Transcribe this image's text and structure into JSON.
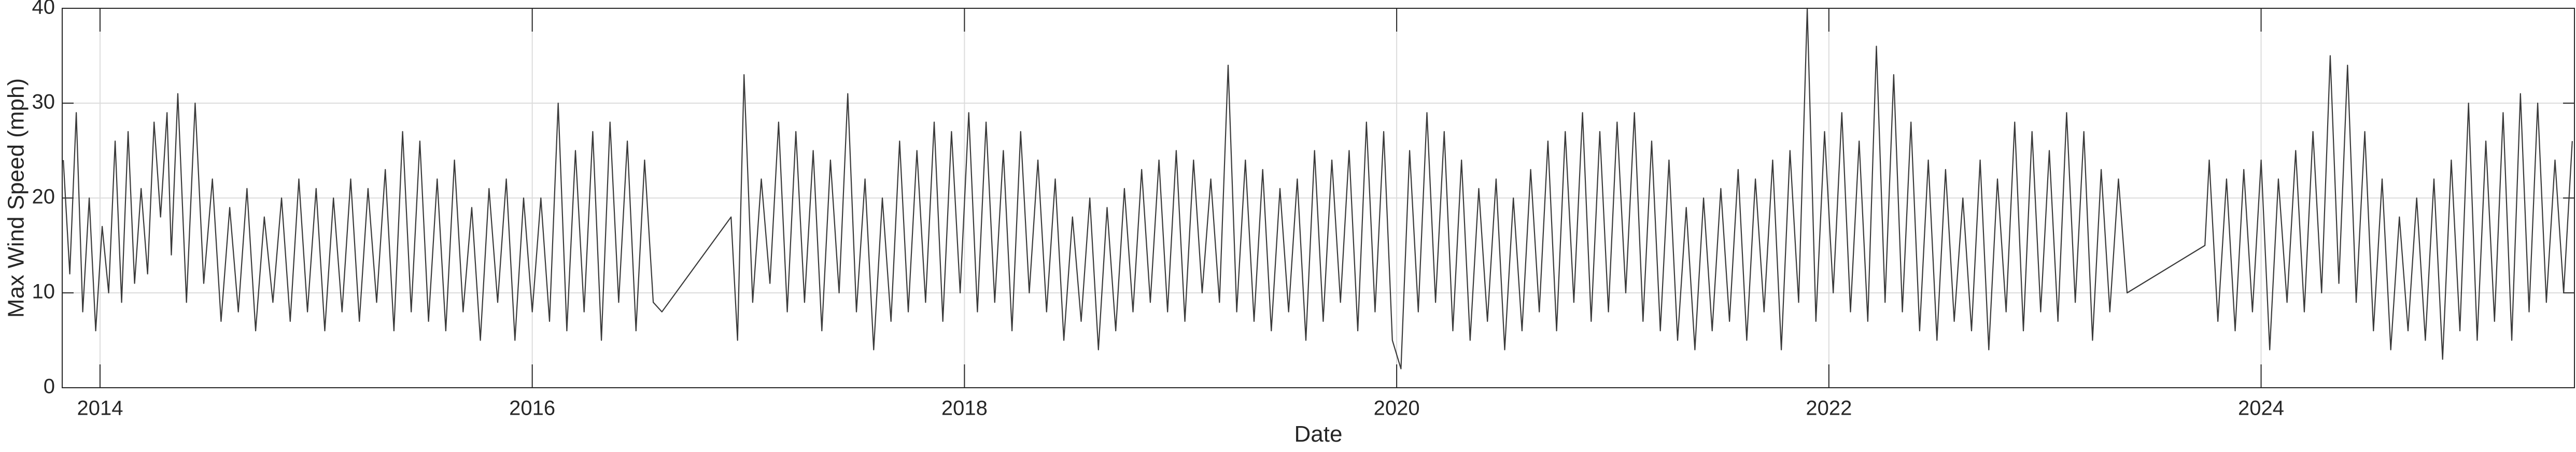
{
  "chart_data": {
    "type": "line",
    "x_label": "Date",
    "y_label": "Max Wind Speed (mph)",
    "xlim": [
      2013.825,
      2025.45
    ],
    "ylim": [
      0,
      40
    ],
    "xticks": [
      2014,
      2016,
      2018,
      2020,
      2022,
      2024
    ],
    "yticks": [
      0,
      10,
      20,
      30,
      40
    ],
    "grid": true,
    "series": [
      {
        "name": "Max Wind Speed",
        "color": "#3a3a3a",
        "x": [
          2013.83,
          2013.86,
          2013.89,
          2013.92,
          2013.95,
          2013.98,
          2014.01,
          2014.04,
          2014.07,
          2014.1,
          2014.13,
          2014.16,
          2014.19,
          2014.22,
          2014.25,
          2014.28,
          2014.31,
          2014.33,
          2014.36,
          2014.4,
          2014.44,
          2014.48,
          2014.52,
          2014.56,
          2014.6,
          2014.64,
          2014.68,
          2014.72,
          2014.76,
          2014.8,
          2014.84,
          2014.88,
          2014.92,
          2014.96,
          2015.0,
          2015.04,
          2015.08,
          2015.12,
          2015.16,
          2015.2,
          2015.24,
          2015.28,
          2015.32,
          2015.36,
          2015.4,
          2015.44,
          2015.48,
          2015.52,
          2015.56,
          2015.6,
          2015.64,
          2015.68,
          2015.72,
          2015.76,
          2015.8,
          2015.84,
          2015.88,
          2015.92,
          2015.96,
          2016.0,
          2016.04,
          2016.08,
          2016.12,
          2016.16,
          2016.2,
          2016.24,
          2016.28,
          2016.32,
          2016.36,
          2016.4,
          2016.44,
          2016.48,
          2016.52,
          2016.56,
          2016.6,
          2016.92,
          2016.95,
          2016.98,
          2017.02,
          2017.06,
          2017.1,
          2017.14,
          2017.18,
          2017.22,
          2017.26,
          2017.3,
          2017.34,
          2017.38,
          2017.42,
          2017.46,
          2017.5,
          2017.54,
          2017.58,
          2017.62,
          2017.66,
          2017.7,
          2017.74,
          2017.78,
          2017.82,
          2017.86,
          2017.9,
          2017.94,
          2017.98,
          2018.02,
          2018.06,
          2018.1,
          2018.14,
          2018.18,
          2018.22,
          2018.26,
          2018.3,
          2018.34,
          2018.38,
          2018.42,
          2018.46,
          2018.5,
          2018.54,
          2018.58,
          2018.62,
          2018.66,
          2018.7,
          2018.74,
          2018.78,
          2018.82,
          2018.86,
          2018.9,
          2018.94,
          2018.98,
          2019.02,
          2019.06,
          2019.1,
          2019.14,
          2019.18,
          2019.22,
          2019.26,
          2019.3,
          2019.34,
          2019.38,
          2019.42,
          2019.46,
          2019.5,
          2019.54,
          2019.58,
          2019.62,
          2019.66,
          2019.7,
          2019.74,
          2019.78,
          2019.82,
          2019.86,
          2019.9,
          2019.94,
          2019.98,
          2020.02,
          2020.06,
          2020.1,
          2020.14,
          2020.18,
          2020.22,
          2020.26,
          2020.3,
          2020.34,
          2020.38,
          2020.42,
          2020.46,
          2020.5,
          2020.54,
          2020.58,
          2020.62,
          2020.66,
          2020.7,
          2020.74,
          2020.78,
          2020.82,
          2020.86,
          2020.9,
          2020.94,
          2020.98,
          2021.02,
          2021.06,
          2021.1,
          2021.14,
          2021.18,
          2021.22,
          2021.26,
          2021.3,
          2021.34,
          2021.38,
          2021.42,
          2021.46,
          2021.5,
          2021.54,
          2021.58,
          2021.62,
          2021.66,
          2021.7,
          2021.74,
          2021.78,
          2021.82,
          2021.86,
          2021.9,
          2021.94,
          2021.98,
          2022.02,
          2022.06,
          2022.1,
          2022.14,
          2022.18,
          2022.22,
          2022.26,
          2022.3,
          2022.34,
          2022.38,
          2022.42,
          2022.46,
          2022.5,
          2022.54,
          2022.58,
          2022.62,
          2022.66,
          2022.7,
          2022.74,
          2022.78,
          2022.82,
          2022.86,
          2022.9,
          2022.94,
          2022.98,
          2023.02,
          2023.06,
          2023.1,
          2023.14,
          2023.18,
          2023.22,
          2023.26,
          2023.3,
          2023.34,
          2023.38,
          2023.74,
          2023.76,
          2023.8,
          2023.84,
          2023.88,
          2023.92,
          2023.96,
          2024.0,
          2024.04,
          2024.08,
          2024.12,
          2024.16,
          2024.2,
          2024.24,
          2024.28,
          2024.32,
          2024.36,
          2024.4,
          2024.44,
          2024.48,
          2024.52,
          2024.56,
          2024.6,
          2024.64,
          2024.68,
          2024.72,
          2024.76,
          2024.8,
          2024.84,
          2024.88,
          2024.92,
          2024.96,
          2025.0,
          2025.04,
          2025.08,
          2025.12,
          2025.16,
          2025.2,
          2025.24,
          2025.28,
          2025.32,
          2025.36,
          2025.4,
          2025.44
        ],
        "values": [
          24,
          12,
          29,
          8,
          20,
          6,
          17,
          10,
          26,
          9,
          27,
          11,
          21,
          12,
          28,
          18,
          29,
          14,
          31,
          9,
          30,
          11,
          22,
          7,
          19,
          8,
          21,
          6,
          18,
          9,
          20,
          7,
          22,
          8,
          21,
          6,
          20,
          8,
          22,
          7,
          21,
          9,
          23,
          6,
          27,
          8,
          26,
          7,
          22,
          6,
          24,
          8,
          19,
          5,
          21,
          9,
          22,
          5,
          20,
          8,
          20,
          7,
          30,
          6,
          25,
          8,
          27,
          5,
          28,
          9,
          26,
          6,
          24,
          9,
          8,
          18,
          5,
          33,
          9,
          22,
          11,
          28,
          8,
          27,
          9,
          25,
          6,
          24,
          10,
          31,
          8,
          22,
          4,
          20,
          7,
          26,
          8,
          25,
          9,
          28,
          7,
          27,
          10,
          29,
          8,
          28,
          9,
          25,
          6,
          27,
          10,
          24,
          8,
          22,
          5,
          18,
          7,
          20,
          4,
          19,
          6,
          21,
          8,
          23,
          9,
          24,
          8,
          25,
          7,
          24,
          10,
          22,
          9,
          34,
          8,
          24,
          7,
          23,
          6,
          21,
          8,
          22,
          5,
          25,
          7,
          24,
          9,
          25,
          6,
          28,
          8,
          27,
          5,
          2,
          25,
          8,
          29,
          9,
          27,
          6,
          24,
          5,
          21,
          7,
          22,
          4,
          20,
          6,
          23,
          8,
          26,
          6,
          27,
          9,
          29,
          7,
          27,
          8,
          28,
          10,
          29,
          7,
          26,
          6,
          24,
          5,
          19,
          4,
          20,
          6,
          21,
          7,
          23,
          5,
          22,
          8,
          24,
          4,
          25,
          9,
          40,
          7,
          27,
          10,
          29,
          8,
          26,
          7,
          36,
          9,
          33,
          8,
          28,
          6,
          24,
          5,
          23,
          7,
          20,
          6,
          24,
          4,
          22,
          8,
          28,
          6,
          27,
          8,
          25,
          7,
          29,
          9,
          27,
          5,
          23,
          8,
          22,
          10,
          15,
          24,
          7,
          22,
          6,
          23,
          8,
          24,
          4,
          22,
          9,
          25,
          8,
          27,
          10,
          35,
          11,
          34,
          9,
          27,
          6,
          22,
          4,
          18,
          6,
          20,
          5,
          22,
          3,
          24,
          6,
          30,
          5,
          26,
          7,
          29,
          5,
          31,
          8,
          30,
          9,
          24,
          10,
          26
        ]
      }
    ]
  }
}
